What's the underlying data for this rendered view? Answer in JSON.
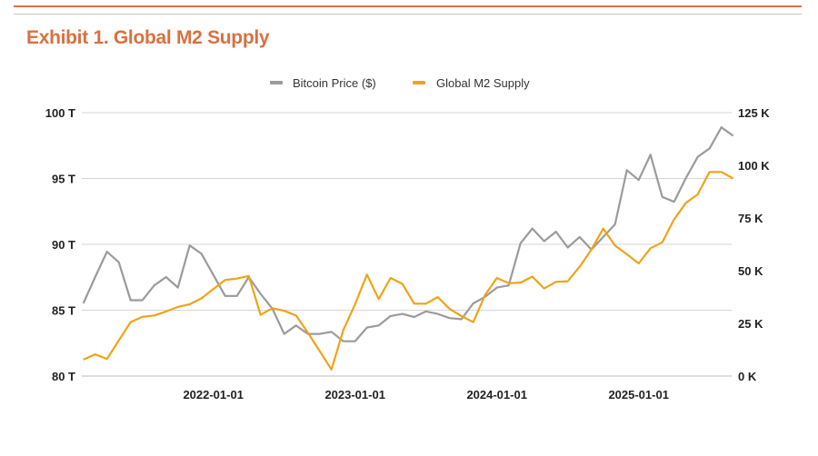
{
  "title": "Exhibit 1. Global M2 Supply",
  "chart_data": {
    "type": "line",
    "title": "Exhibit 1. Global M2 Supply",
    "legend_position": "top",
    "grid": true,
    "x": [
      "2021-02",
      "2021-03",
      "2021-04",
      "2021-05",
      "2021-06",
      "2021-07",
      "2021-08",
      "2021-09",
      "2021-10",
      "2021-11",
      "2021-12",
      "2022-01",
      "2022-02",
      "2022-03",
      "2022-04",
      "2022-05",
      "2022-06",
      "2022-07",
      "2022-08",
      "2022-09",
      "2022-10",
      "2022-11",
      "2022-12",
      "2023-01",
      "2023-02",
      "2023-03",
      "2023-04",
      "2023-05",
      "2023-06",
      "2023-07",
      "2023-08",
      "2023-09",
      "2023-10",
      "2023-11",
      "2023-12",
      "2024-01",
      "2024-02",
      "2024-03",
      "2024-04",
      "2024-05",
      "2024-06",
      "2024-07",
      "2024-08",
      "2024-09",
      "2024-10",
      "2024-11",
      "2024-12",
      "2025-01",
      "2025-02",
      "2025-03",
      "2025-04",
      "2025-05",
      "2025-06",
      "2025-07",
      "2025-08",
      "2025-09"
    ],
    "x_ticks": [
      "2022-01-01",
      "2023-01-01",
      "2024-01-01",
      "2025-01-01"
    ],
    "y_left": {
      "ticks": [
        "80 T",
        "85 T",
        "90 T",
        "95 T",
        "100 T"
      ],
      "tick_values": [
        80,
        85,
        90,
        95,
        100
      ],
      "range": [
        80,
        100
      ]
    },
    "y_right": {
      "ticks": [
        "0 K",
        "25 K",
        "50 K",
        "75 K",
        "100 K",
        "125 K"
      ],
      "tick_values": [
        0,
        25,
        50,
        75,
        100,
        125
      ],
      "range": [
        0,
        125
      ]
    },
    "series": [
      {
        "name": "Bitcoin Price ($)",
        "axis": "right",
        "color": "#9b9b9b",
        "values": [
          34.5,
          47,
          59,
          54,
          36,
          36,
          43,
          47,
          42,
          62,
          58,
          48,
          38,
          38,
          47,
          39,
          32,
          20,
          24,
          20,
          20,
          21,
          16.5,
          16.5,
          23,
          24,
          28.5,
          29.5,
          28,
          30.7,
          29.5,
          27.5,
          27,
          34.5,
          37.6,
          42,
          43,
          63,
          70,
          64,
          68.5,
          61,
          66,
          60,
          66,
          72,
          97.7,
          93,
          105,
          85,
          82.7,
          94,
          104,
          108,
          118,
          114
        ]
      },
      {
        "name": "Global M2 Supply",
        "axis": "left",
        "color": "#f0a318",
        "values": [
          81.25,
          81.65,
          81.3,
          82.7,
          84.1,
          84.5,
          84.6,
          84.9,
          85.25,
          85.45,
          85.9,
          86.6,
          87.3,
          87.4,
          87.6,
          84.65,
          85.15,
          84.95,
          84.6,
          83.3,
          81.9,
          80.5,
          83.5,
          85.45,
          87.7,
          85.85,
          87.45,
          87.0,
          85.5,
          85.5,
          86.0,
          85.1,
          84.55,
          84.1,
          86.15,
          87.45,
          87.05,
          87.1,
          87.55,
          86.65,
          87.15,
          87.2,
          88.3,
          89.6,
          91.2,
          89.9,
          89.25,
          88.55,
          89.7,
          90.15,
          91.9,
          93.15,
          93.8,
          95.5,
          95.5,
          95.0
        ]
      }
    ]
  }
}
